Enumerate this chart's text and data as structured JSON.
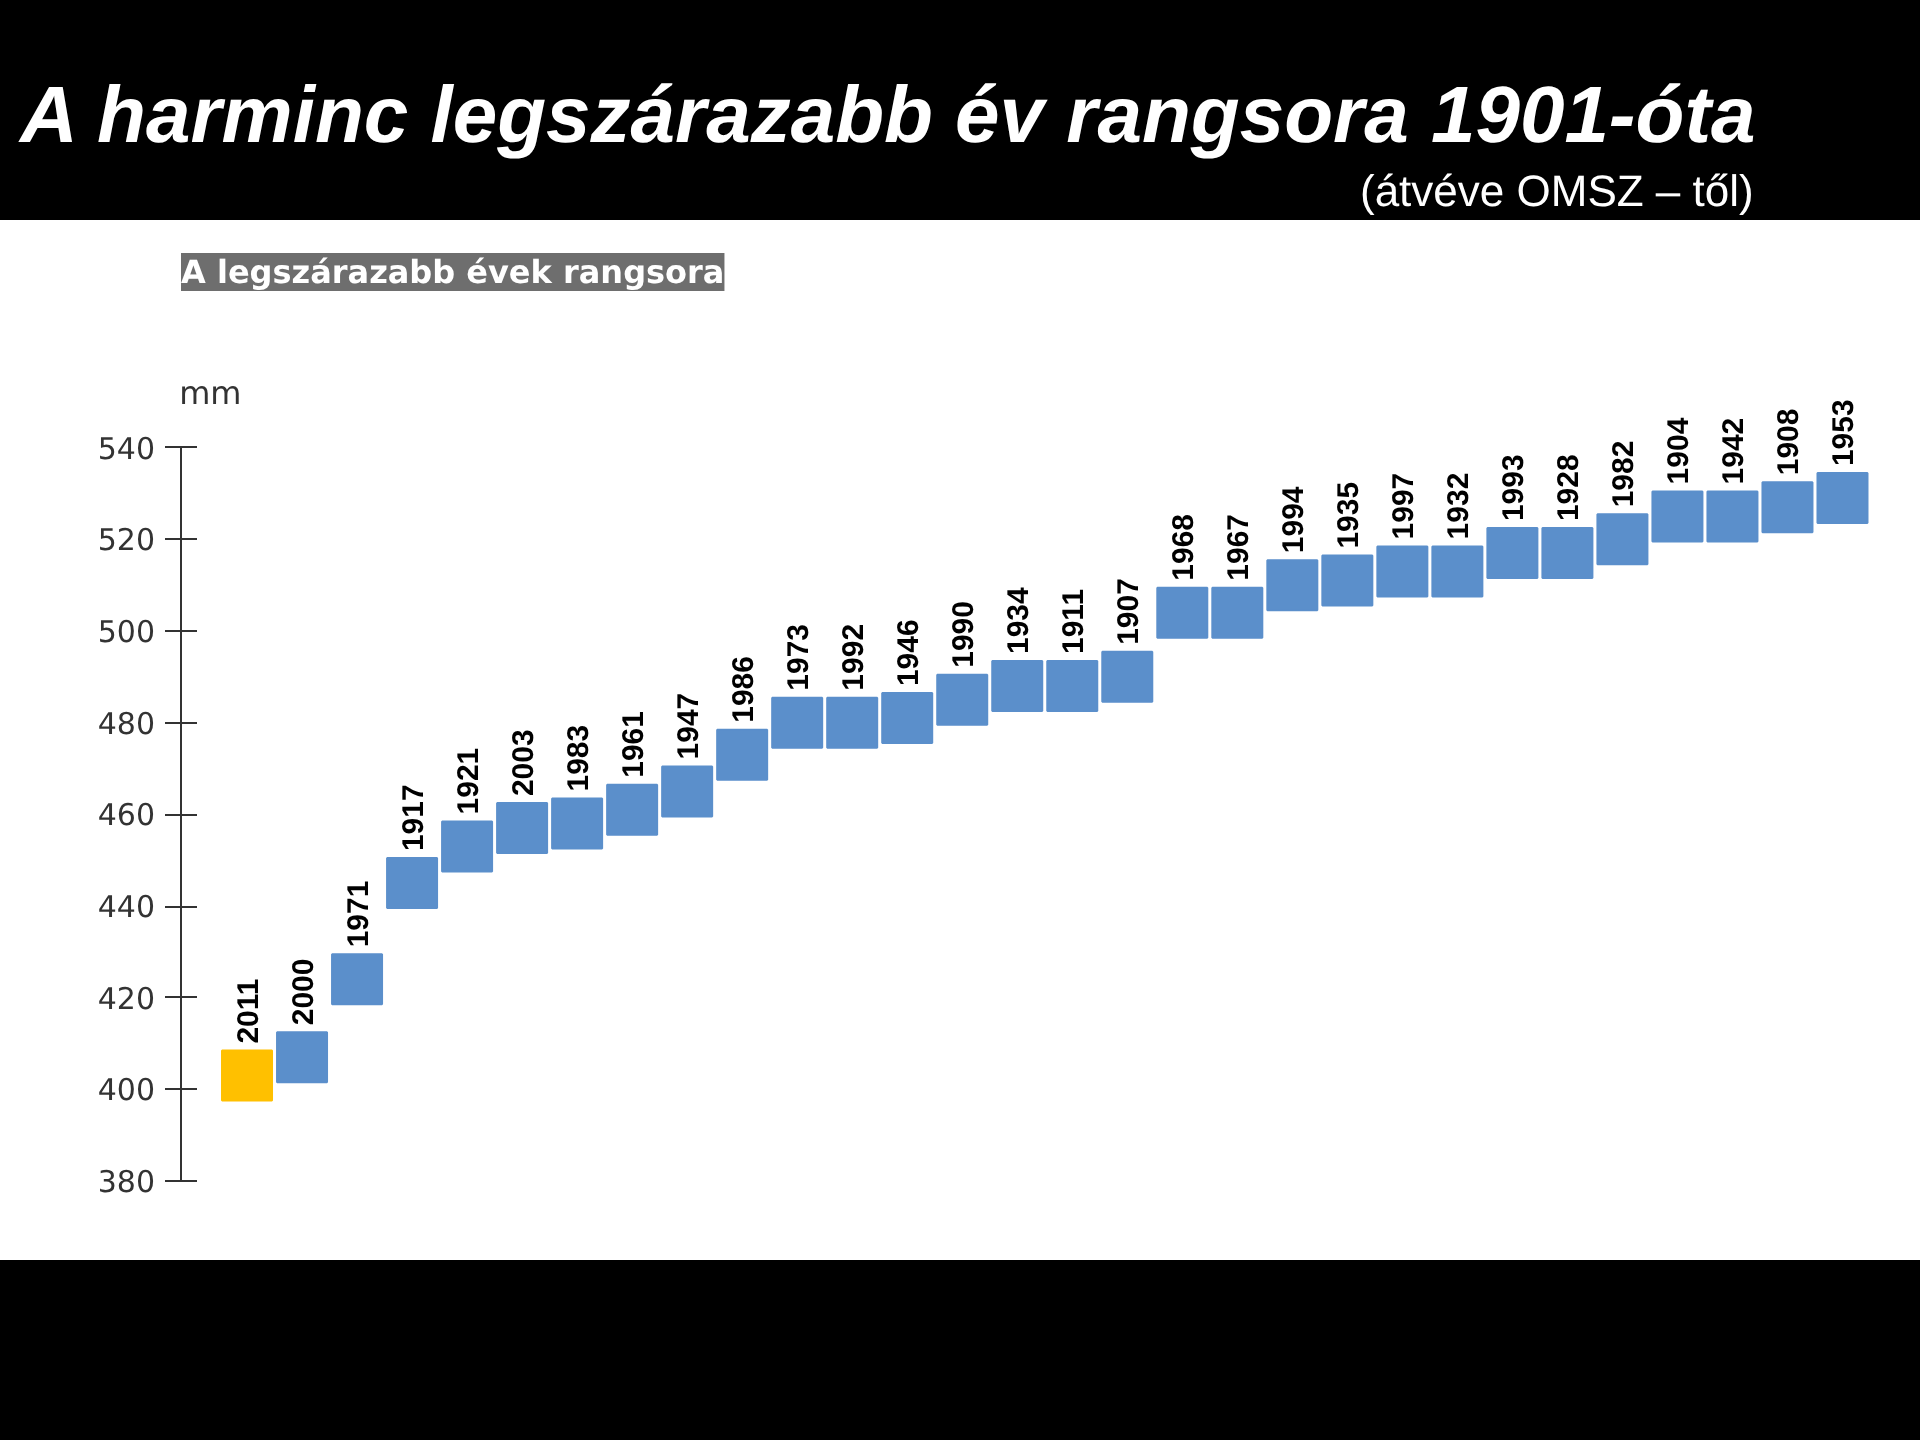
{
  "chart_data": {
    "type": "scatter",
    "title": "A harminc legszárazabb év rangsora 1901-óta",
    "subtitle": "(átvéve OMSZ – től)",
    "annotations": [
      "A legszárazabb évek rangsora"
    ],
    "ylabel": "mm",
    "categories": [
      "2011",
      "2000",
      "1971",
      "1917",
      "1921",
      "2003",
      "1983",
      "1961",
      "1947",
      "1986",
      "1973",
      "1992",
      "1946",
      "1990",
      "1934",
      "1911",
      "1907",
      "1968",
      "1967",
      "1994",
      "1935",
      "1997",
      "1932",
      "1993",
      "1928",
      "1982",
      "1904",
      "1942",
      "1908",
      "1953"
    ],
    "values": [
      403,
      407,
      424,
      445,
      453,
      457,
      458,
      461,
      465,
      473,
      480,
      480,
      481,
      485,
      488,
      488,
      490,
      504,
      504,
      510,
      511,
      513,
      513,
      517,
      517,
      520,
      525,
      525,
      527,
      529
    ],
    "colors": [
      "#ffc000",
      "#5b8fcb",
      "#5b8fcb",
      "#5b8fcb",
      "#5b8fcb",
      "#5b8fcb",
      "#5b8fcb",
      "#5b8fcb",
      "#5b8fcb",
      "#5b8fcb",
      "#5b8fcb",
      "#5b8fcb",
      "#5b8fcb",
      "#5b8fcb",
      "#5b8fcb",
      "#5b8fcb",
      "#5b8fcb",
      "#5b8fcb",
      "#5b8fcb",
      "#5b8fcb",
      "#5b8fcb",
      "#5b8fcb",
      "#5b8fcb",
      "#5b8fcb",
      "#5b8fcb",
      "#5b8fcb",
      "#5b8fcb",
      "#5b8fcb",
      "#5b8fcb",
      "#5b8fcb"
    ],
    "ylim": [
      380,
      540
    ],
    "yticks": [
      380,
      400,
      420,
      440,
      460,
      480,
      500,
      520,
      540
    ],
    "marker": "square",
    "grid": false
  }
}
